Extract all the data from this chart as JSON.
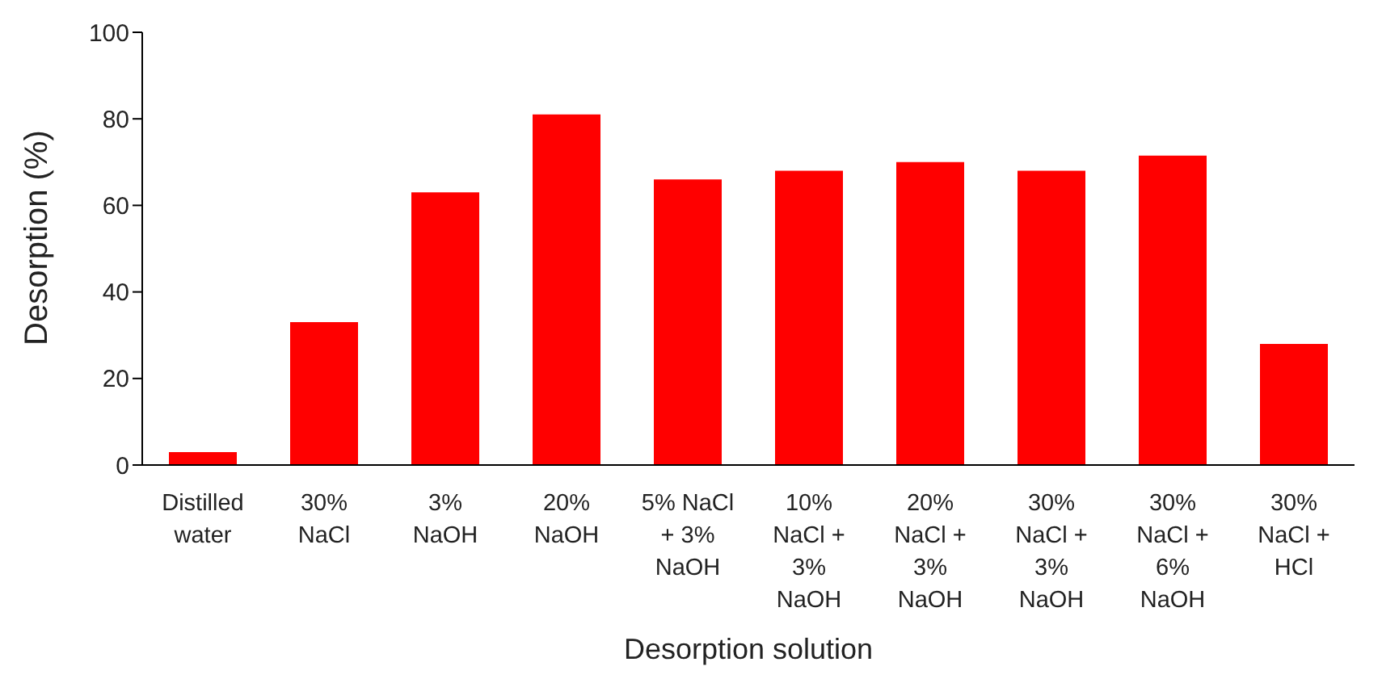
{
  "chart_data": {
    "type": "bar",
    "xlabel": "Desorption solution",
    "ylabel": "Desorption  (%)",
    "categories": [
      "Distilled water",
      "30% NaCl",
      "3% NaOH",
      "20% NaOH",
      "5% NaCl + 3% NaOH",
      "10% NaCl + 3% NaOH",
      "20% NaCl + 3% NaOH",
      "30% NaCl + 3% NaOH",
      "30% NaCl + 6% NaOH",
      "30% NaCl + HCl"
    ],
    "values": [
      3,
      33,
      63,
      81,
      66,
      68,
      70,
      68,
      71.5,
      28
    ],
    "color": "#ff0000",
    "ylim": [
      0,
      100
    ],
    "yticks": [
      0,
      20,
      40,
      60,
      80,
      100
    ],
    "grid": false,
    "legend": false
  }
}
